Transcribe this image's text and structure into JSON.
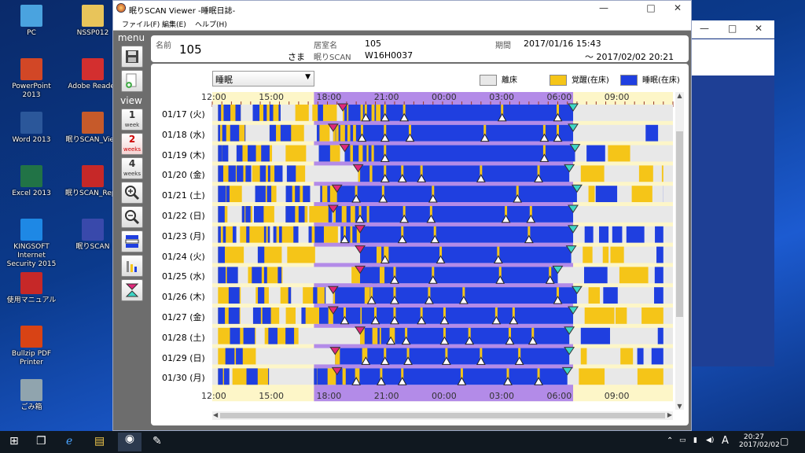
{
  "desktop": {
    "icons": [
      {
        "label": "PC",
        "icon": "pc-icon",
        "color": "#4aa3df"
      },
      {
        "label": "NSSP012",
        "icon": "folder-user-icon",
        "color": "#e8c45a"
      },
      {
        "label": "PowerPoint 2013",
        "icon": "powerpoint-icon",
        "color": "#d24726"
      },
      {
        "label": "Adobe Reader",
        "icon": "adobe-reader-icon",
        "color": "#d32f2f"
      },
      {
        "label": "Word 2013",
        "icon": "word-icon",
        "color": "#2b579a"
      },
      {
        "label": "眠りSCAN_View",
        "icon": "nemuri-scan-view-icon",
        "color": "#c65a2a"
      },
      {
        "label": "Excel 2013",
        "icon": "excel-icon",
        "color": "#217346"
      },
      {
        "label": "眠りSCAN_Repo",
        "icon": "nemuri-scan-report-icon",
        "color": "#c62828"
      },
      {
        "label": "KINGSOFT Internet Security 2015",
        "icon": "kingsoft-icon",
        "color": "#1e88e5"
      },
      {
        "label": "眠りSCAN",
        "icon": "nemuri-scan-icon",
        "color": "#3949ab"
      },
      {
        "label": "使用マニュアル",
        "icon": "pdf-manual-icon",
        "color": "#c62828"
      },
      {
        "label": "Bullzip PDF Printer",
        "icon": "printer-icon",
        "color": "#d84315"
      },
      {
        "label": "ごみ箱",
        "icon": "recycle-bin-icon",
        "color": "#90a4ae"
      }
    ]
  },
  "window": {
    "title": "眠りSCAN Viewer -睡眠日誌-",
    "minimize": "—",
    "maximize": "□",
    "close": "✕"
  },
  "bg_window": {
    "minimize": "—",
    "maximize": "□",
    "close": "✕"
  },
  "menu": {
    "file": "ファイル(F)",
    "edit": "編集(E)",
    "help": "ヘルプ(H)"
  },
  "sidebar": {
    "menu_label": "menu",
    "view_label": "view",
    "view_buttons": [
      {
        "num": "1",
        "unit": "week"
      },
      {
        "num": "2",
        "unit": "weeks"
      },
      {
        "num": "4",
        "unit": "weeks"
      }
    ]
  },
  "header": {
    "name_label": "名前",
    "name_value": "105",
    "honorific": "さま",
    "room_label": "居室名",
    "room_value": "105",
    "scan_label": "眠りSCAN",
    "scan_value": "W16H0037",
    "period_label": "期間",
    "period_start": "2017/01/16 15:43",
    "period_end": "～ 2017/02/02 20:21"
  },
  "view_select": {
    "value": "睡眠"
  },
  "legend": [
    {
      "label": "離床",
      "color": "#e8e8e8"
    },
    {
      "label": "覚醒(在床)",
      "color": "#f5c518"
    },
    {
      "label": "睡眠(在床)",
      "color": "#1f3fe0"
    }
  ],
  "time_axis": {
    "labels": [
      "12:00",
      "15:00",
      "18:00",
      "21:00",
      "00:00",
      "03:00",
      "06:00",
      "09:00"
    ]
  },
  "chart_data": {
    "type": "timeline",
    "x_range_hours": [
      12,
      36
    ],
    "night_band_hours": [
      17.3,
      30.8
    ],
    "rows": [
      {
        "date": "01/17 (火)",
        "bed_hour": 18.8,
        "wake_hour": 30.8,
        "marks": [
          20.0,
          21.0,
          22.0,
          27.1,
          30.0
        ]
      },
      {
        "date": "01/18 (水)",
        "bed_hour": 18.3,
        "wake_hour": 30.8,
        "marks": [
          19.8,
          21.0,
          22.3,
          26.2,
          29.3,
          30.0
        ]
      },
      {
        "date": "01/19 (木)",
        "bed_hour": 18.9,
        "wake_hour": 30.9,
        "marks": [
          21.0,
          29.3
        ]
      },
      {
        "date": "01/20 (金)",
        "bed_hour": 19.6,
        "wake_hour": 30.6,
        "marks": [
          21.0,
          21.9,
          22.9,
          26.0,
          29.0
        ]
      },
      {
        "date": "01/21 (土)",
        "bed_hour": 18.5,
        "wake_hour": 31.0,
        "marks": [
          19.5,
          20.9,
          23.5,
          27.9
        ]
      },
      {
        "date": "01/22 (日)",
        "bed_hour": 18.3,
        "wake_hour": 30.8,
        "marks": [
          19.7,
          22.0,
          23.4,
          27.3,
          28.6
        ]
      },
      {
        "date": "01/23 (月)",
        "bed_hour": 19.7,
        "wake_hour": 30.8,
        "marks": [
          18.9,
          21.9,
          23.6,
          28.5
        ]
      },
      {
        "date": "01/24 (火)",
        "bed_hour": 19.7,
        "wake_hour": 30.7,
        "marks": [
          21.0,
          23.9,
          26.9
        ]
      },
      {
        "date": "01/25 (水)",
        "bed_hour": 19.7,
        "wake_hour": 30.0,
        "marks": [
          21.5,
          23.5,
          27.0,
          29.6
        ]
      },
      {
        "date": "01/26 (木)",
        "bed_hour": 18.3,
        "wake_hour": 31.0,
        "marks": [
          20.3,
          21.5,
          23.3,
          25.1,
          30.0
        ]
      },
      {
        "date": "01/27 (金)",
        "bed_hour": 18.3,
        "wake_hour": 30.8,
        "marks": [
          18.9,
          20.5,
          21.5,
          22.9,
          24.1,
          26.8,
          27.7
        ]
      },
      {
        "date": "01/28 (土)",
        "bed_hour": 19.7,
        "wake_hour": 30.6,
        "marks": [
          21.3,
          22.1,
          24.1,
          25.4,
          27.5,
          28.7
        ]
      },
      {
        "date": "01/29 (日)",
        "bed_hour": 18.4,
        "wake_hour": 30.6,
        "marks": [
          20.0,
          21.0,
          22.2,
          24.2,
          26.0,
          28.0
        ]
      },
      {
        "date": "01/30 (月)",
        "bed_hour": 18.5,
        "wake_hour": 30.5,
        "marks": [
          19.5,
          20.8,
          21.9,
          25.0,
          27.4,
          29.0
        ]
      }
    ]
  },
  "taskbar": {
    "time": "20:27",
    "date": "2017/02/02",
    "ime": "A"
  }
}
